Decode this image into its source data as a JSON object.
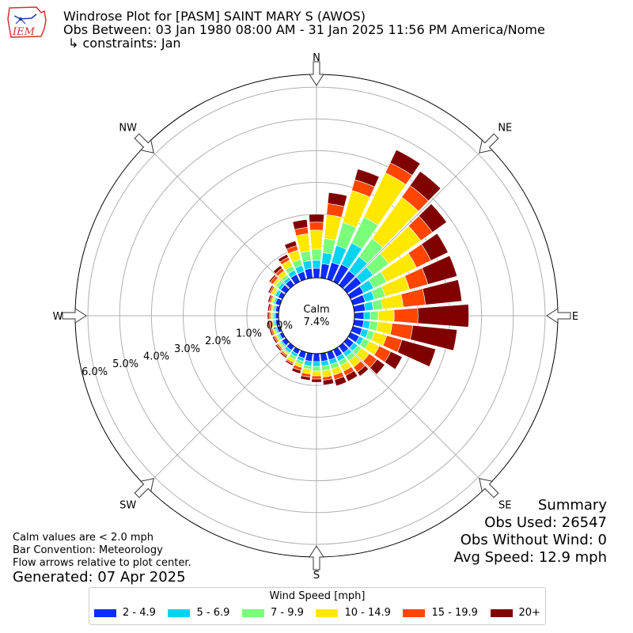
{
  "header": {
    "title": "Windrose Plot for [PASM] SAINT MARY S (AWOS)",
    "obs_between": "Obs Between: 03 Jan 1980 08:00 AM - 31 Jan 2025 11:56 PM America/Nome",
    "constraints": "↳ constraints: Jan",
    "logo_text": "IEM"
  },
  "summary": {
    "heading": "Summary",
    "obs_used": "Obs Used: 26547",
    "obs_without_wind": "Obs Without Wind: 0",
    "avg_speed": "Avg Speed: 12.9 mph"
  },
  "notes": {
    "calm": "Calm values are < 2.0 mph",
    "convention": "Bar Convention: Meteorology",
    "flow": "Flow arrows relative to plot center.",
    "generated": "Generated: 07 Apr 2025"
  },
  "chart_data": {
    "type": "windrose",
    "calm_label": "Calm",
    "calm_value": "7.4%",
    "directions": [
      "N",
      "NE",
      "E",
      "SE",
      "S",
      "SW",
      "W",
      "NW"
    ],
    "radial_ticks": [
      "0.0%",
      "1.0%",
      "2.0%",
      "3.0%",
      "4.0%",
      "5.0%",
      "6.0%"
    ],
    "radial_max": 6.4,
    "legend_title": "Wind Speed [mph]",
    "bins": [
      {
        "label": "2 - 4.9",
        "color": "#0a2cff"
      },
      {
        "label": "5 - 6.9",
        "color": "#00d4f0"
      },
      {
        "label": "7 - 9.9",
        "color": "#7aff7a"
      },
      {
        "label": "10 - 14.9",
        "color": "#ffe800"
      },
      {
        "label": "15 - 19.9",
        "color": "#ff4500"
      },
      {
        "label": "20+",
        "color": "#800000"
      }
    ],
    "sectors": [
      {
        "dir": 0,
        "values": [
          0.3,
          0.25,
          0.35,
          0.6,
          0.25,
          0.25
        ]
      },
      {
        "dir": 10,
        "values": [
          0.45,
          0.35,
          0.45,
          0.75,
          0.35,
          0.35
        ]
      },
      {
        "dir": 20,
        "values": [
          0.55,
          0.55,
          0.75,
          1.05,
          0.35,
          0.35
        ]
      },
      {
        "dir": 30,
        "values": [
          0.6,
          0.75,
          0.9,
          1.55,
          0.35,
          0.45
        ]
      },
      {
        "dir": 40,
        "values": [
          0.55,
          0.55,
          0.7,
          1.6,
          0.45,
          0.55
        ]
      },
      {
        "dir": 50,
        "values": [
          0.55,
          0.45,
          0.6,
          1.25,
          0.45,
          0.55
        ]
      },
      {
        "dir": 60,
        "values": [
          0.45,
          0.35,
          0.45,
          1.05,
          0.5,
          0.6
        ]
      },
      {
        "dir": 70,
        "values": [
          0.4,
          0.3,
          0.35,
          0.8,
          0.6,
          0.95
        ]
      },
      {
        "dir": 80,
        "values": [
          0.35,
          0.25,
          0.3,
          0.65,
          0.7,
          1.15
        ]
      },
      {
        "dir": 90,
        "values": [
          0.3,
          0.2,
          0.25,
          0.5,
          0.75,
          1.6
        ]
      },
      {
        "dir": 100,
        "values": [
          0.3,
          0.2,
          0.25,
          0.45,
          0.65,
          1.4
        ]
      },
      {
        "dir": 110,
        "values": [
          0.3,
          0.2,
          0.2,
          0.4,
          0.5,
          1.1
        ]
      },
      {
        "dir": 120,
        "values": [
          0.3,
          0.15,
          0.2,
          0.35,
          0.4,
          0.4
        ]
      },
      {
        "dir": 130,
        "values": [
          0.25,
          0.15,
          0.15,
          0.3,
          0.3,
          0.3
        ]
      },
      {
        "dir": 140,
        "values": [
          0.25,
          0.15,
          0.15,
          0.25,
          0.2,
          0.15
        ]
      },
      {
        "dir": 150,
        "values": [
          0.25,
          0.15,
          0.15,
          0.2,
          0.15,
          0.2
        ]
      },
      {
        "dir": 160,
        "values": [
          0.25,
          0.15,
          0.15,
          0.2,
          0.15,
          0.2
        ]
      },
      {
        "dir": 170,
        "values": [
          0.25,
          0.15,
          0.15,
          0.2,
          0.1,
          0.15
        ]
      },
      {
        "dir": 180,
        "values": [
          0.25,
          0.15,
          0.15,
          0.15,
          0.1,
          0.1
        ]
      },
      {
        "dir": 190,
        "values": [
          0.25,
          0.15,
          0.1,
          0.15,
          0.1,
          0.1
        ]
      },
      {
        "dir": 200,
        "values": [
          0.2,
          0.1,
          0.1,
          0.1,
          0.1,
          0.1
        ]
      },
      {
        "dir": 210,
        "values": [
          0.15,
          0.1,
          0.1,
          0.1,
          0.05,
          0.05
        ]
      },
      {
        "dir": 220,
        "values": [
          0.15,
          0.1,
          0.05,
          0.05,
          0.05,
          0.05
        ]
      },
      {
        "dir": 230,
        "values": [
          0.15,
          0.05,
          0.05,
          0.05,
          0.05,
          0.05
        ]
      },
      {
        "dir": 240,
        "values": [
          0.1,
          0.05,
          0.05,
          0.05,
          0.05,
          0.05
        ]
      },
      {
        "dir": 250,
        "values": [
          0.1,
          0.05,
          0.05,
          0.05,
          0.05,
          0.05
        ]
      },
      {
        "dir": 260,
        "values": [
          0.1,
          0.05,
          0.05,
          0.05,
          0.05,
          0.05
        ]
      },
      {
        "dir": 270,
        "values": [
          0.1,
          0.05,
          0.05,
          0.05,
          0.05,
          0.05
        ]
      },
      {
        "dir": 280,
        "values": [
          0.1,
          0.05,
          0.05,
          0.05,
          0.05,
          0.05
        ]
      },
      {
        "dir": 290,
        "values": [
          0.15,
          0.05,
          0.05,
          0.05,
          0.05,
          0.05
        ]
      },
      {
        "dir": 300,
        "values": [
          0.15,
          0.1,
          0.05,
          0.1,
          0.05,
          0.05
        ]
      },
      {
        "dir": 310,
        "values": [
          0.2,
          0.1,
          0.1,
          0.1,
          0.1,
          0.05
        ]
      },
      {
        "dir": 320,
        "values": [
          0.2,
          0.1,
          0.1,
          0.15,
          0.1,
          0.1
        ]
      },
      {
        "dir": 330,
        "values": [
          0.25,
          0.15,
          0.15,
          0.2,
          0.1,
          0.1
        ]
      },
      {
        "dir": 340,
        "values": [
          0.25,
          0.2,
          0.2,
          0.3,
          0.15,
          0.15
        ]
      },
      {
        "dir": 350,
        "values": [
          0.3,
          0.25,
          0.3,
          0.55,
          0.2,
          0.25
        ]
      }
    ]
  }
}
